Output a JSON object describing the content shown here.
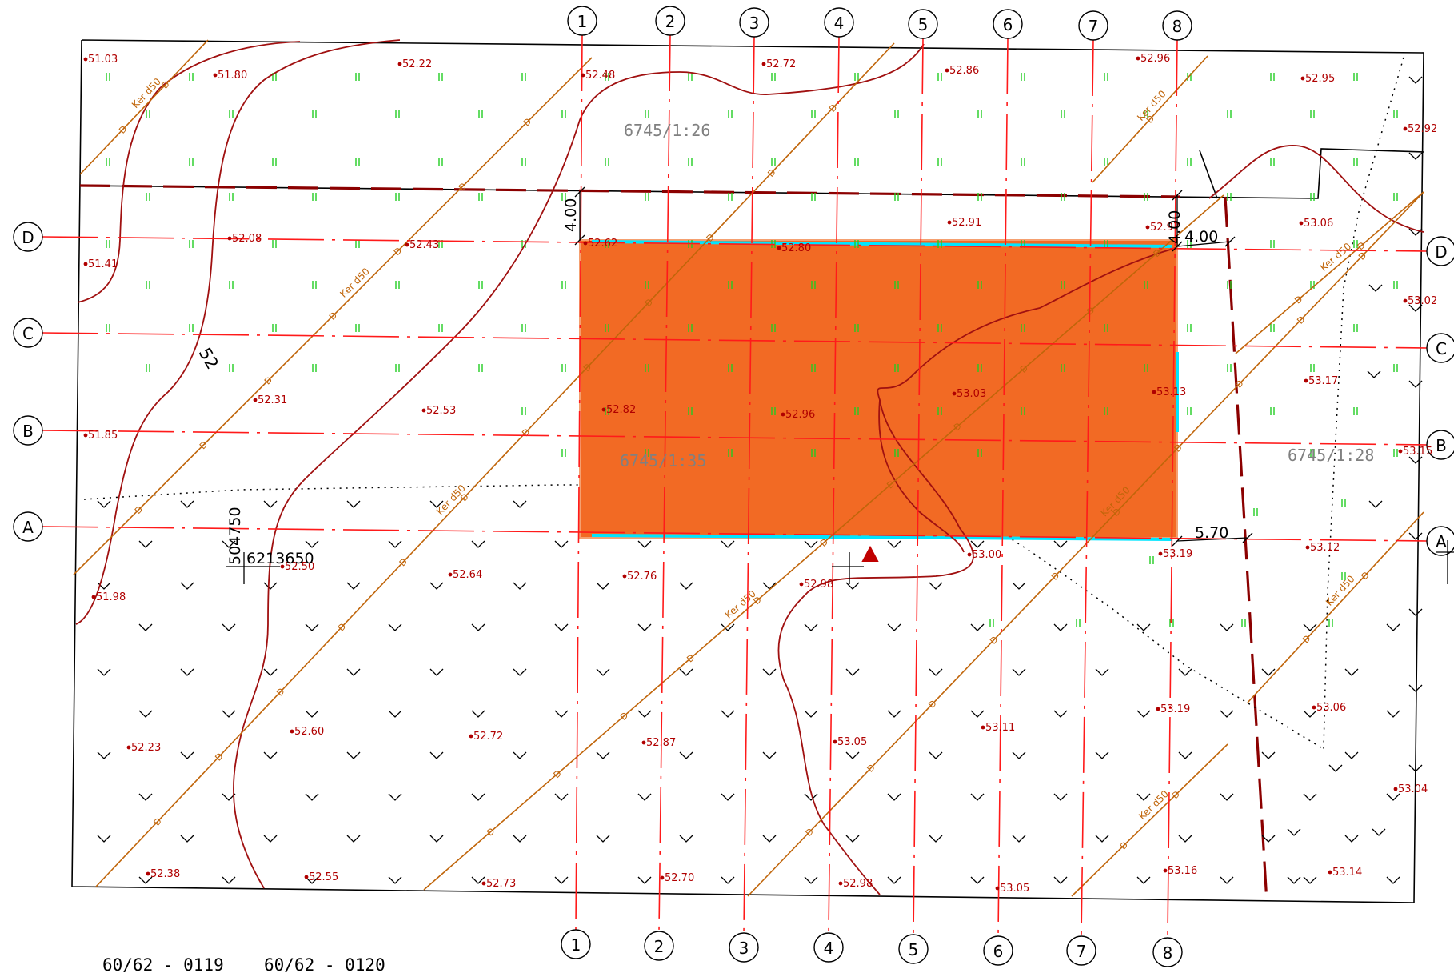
{
  "grid": {
    "columns": [
      "1",
      "2",
      "3",
      "4",
      "5",
      "6",
      "7",
      "8"
    ],
    "rows": [
      "A",
      "B",
      "C",
      "D"
    ]
  },
  "parcels": [
    "6745/1:26",
    "6745/1:35",
    "6745/1:28"
  ],
  "dimensions": [
    "4.00",
    "4.00",
    "4.00",
    "5.70"
  ],
  "contour_label": "52",
  "coordinates": {
    "north": "6213650",
    "east": "504750"
  },
  "footer_sheets": [
    "60/62 - 0119",
    "60/62 - 0120"
  ],
  "pipe_label": "Ker d50",
  "pipe_mark": "D",
  "elevations": [
    "51.03",
    "51.80",
    "52.22",
    "52.48",
    "52.72",
    "52.86",
    "52.96",
    "52.95",
    "52.92",
    "52.08",
    "52.43",
    "51.41",
    "52.62",
    "52.80",
    "52.91",
    "52.97",
    "53.06",
    "53.02",
    "52.31",
    "52.53",
    "51.85",
    "52.82",
    "52.96",
    "53.03",
    "53.13",
    "53.17",
    "53.15",
    "52.50",
    "52.64",
    "51.98",
    "52.76",
    "52.98",
    "53.00",
    "53.19",
    "53.12",
    "52.23",
    "52.60",
    "52.72",
    "52.87",
    "53.05",
    "53.11",
    "53.19",
    "53.06",
    "53.04",
    "52.38",
    "52.55",
    "52.73",
    "52.70",
    "52.98",
    "53.05",
    "53.16",
    "53.14"
  ],
  "colors": {
    "building": "#f26a24",
    "grid_line": "#ff1a1a",
    "contour": "#a01010",
    "pipe": "#c0650a",
    "boundary": "#000000",
    "elevation": "#b00000",
    "grass": "#22cc22",
    "edge": "#00e5ff"
  },
  "icons": [
    "grass-symbol",
    "meadow-symbol",
    "benchmark-triangle"
  ]
}
